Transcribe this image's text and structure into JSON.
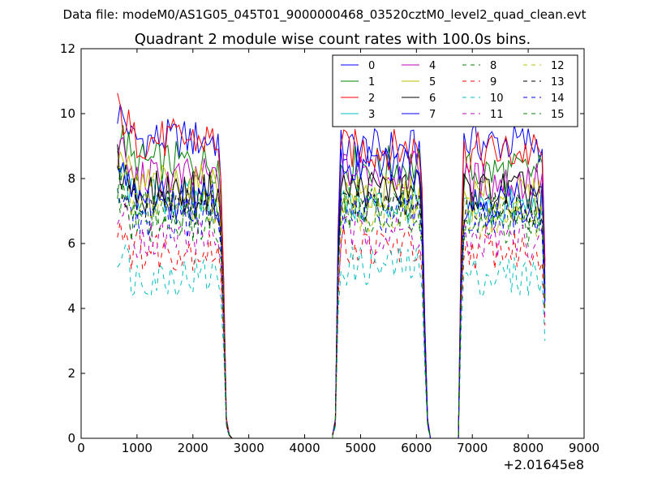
{
  "header": {
    "data_file": "Data file: modeM0/AS1G05_045T01_9000000468_03520cztM0_level2_quad_clean.evt"
  },
  "chart_data": {
    "type": "line",
    "title": "Quadrant 2 module wise count rates with 100.0s bins.",
    "xlabel": "",
    "ylabel": "",
    "x_offset_label": "+2.01645e8",
    "xlim": [
      0,
      9000
    ],
    "ylim": [
      0,
      12
    ],
    "xticks": [
      0,
      1000,
      2000,
      3000,
      4000,
      5000,
      6000,
      7000,
      8000,
      9000
    ],
    "yticks": [
      0,
      2,
      4,
      6,
      8,
      10,
      12
    ],
    "legend": {
      "placement": "top-right",
      "columns": 4
    },
    "gaps": [
      [
        2700,
        4500
      ],
      [
        6300,
        6800
      ]
    ],
    "segments": [
      {
        "x_start": 650,
        "x_end": 2450,
        "step": 50
      },
      {
        "x_start": 4650,
        "x_end": 6050,
        "step": 50
      },
      {
        "x_start": 6850,
        "x_end": 8250,
        "step": 50
      }
    ],
    "edges": [
      {
        "x": [
          2500,
          2550,
          2600,
          2650
        ],
        "y": [
          6.5,
          4.0,
          0.5,
          0.1
        ]
      },
      {
        "x": [
          4500,
          4550,
          4600
        ],
        "y": [
          0.1,
          0.5,
          5.5
        ]
      },
      {
        "x": [
          6100,
          6150,
          6200,
          6250
        ],
        "y": [
          6.5,
          3.0,
          0.5,
          0.0
        ]
      },
      {
        "x": [
          6750,
          6800
        ],
        "y": [
          0.0,
          5.0
        ]
      },
      {
        "x": [
          8300
        ],
        "y": [
          4.5
        ]
      }
    ],
    "series": [
      {
        "name": "0",
        "color": "#0000ff",
        "dash": "solid",
        "levels": [
          9.2,
          8.9,
          9.1
        ]
      },
      {
        "name": "1",
        "color": "#008000",
        "dash": "solid",
        "levels": [
          8.5,
          8.4,
          8.2
        ]
      },
      {
        "name": "2",
        "color": "#ff0000",
        "dash": "solid",
        "levels": [
          9.2,
          8.9,
          8.8
        ]
      },
      {
        "name": "3",
        "color": "#00bfbf",
        "dash": "solid",
        "levels": [
          7.4,
          7.2,
          7.1
        ]
      },
      {
        "name": "4",
        "color": "#bf00bf",
        "dash": "solid",
        "levels": [
          8.0,
          8.2,
          7.9
        ]
      },
      {
        "name": "5",
        "color": "#bfbf00",
        "dash": "solid",
        "levels": [
          7.8,
          7.5,
          7.4
        ]
      },
      {
        "name": "6",
        "color": "#000000",
        "dash": "solid",
        "levels": [
          7.6,
          7.7,
          7.6
        ]
      },
      {
        "name": "7",
        "color": "#0000ff",
        "dash": "solid",
        "levels": [
          7.3,
          8.4,
          7.3
        ]
      },
      {
        "name": "8",
        "color": "#008000",
        "dash": "dashed",
        "levels": [
          7.0,
          7.1,
          6.9
        ]
      },
      {
        "name": "9",
        "color": "#ff0000",
        "dash": "dashed",
        "levels": [
          5.8,
          5.9,
          5.8
        ]
      },
      {
        "name": "10",
        "color": "#00bfbf",
        "dash": "dashed",
        "levels": [
          5.0,
          5.3,
          5.0
        ]
      },
      {
        "name": "11",
        "color": "#bf00bf",
        "dash": "dashed",
        "levels": [
          6.2,
          6.3,
          6.1
        ]
      },
      {
        "name": "12",
        "color": "#bfbf00",
        "dash": "dashed",
        "levels": [
          7.2,
          7.0,
          6.8
        ]
      },
      {
        "name": "13",
        "color": "#000000",
        "dash": "dashed",
        "levels": [
          7.1,
          7.3,
          7.0
        ]
      },
      {
        "name": "14",
        "color": "#0000ff",
        "dash": "dashed",
        "levels": [
          6.8,
          6.9,
          6.7
        ]
      },
      {
        "name": "15",
        "color": "#008000",
        "dash": "dashed",
        "levels": [
          6.6,
          6.8,
          6.5
        ]
      }
    ]
  }
}
